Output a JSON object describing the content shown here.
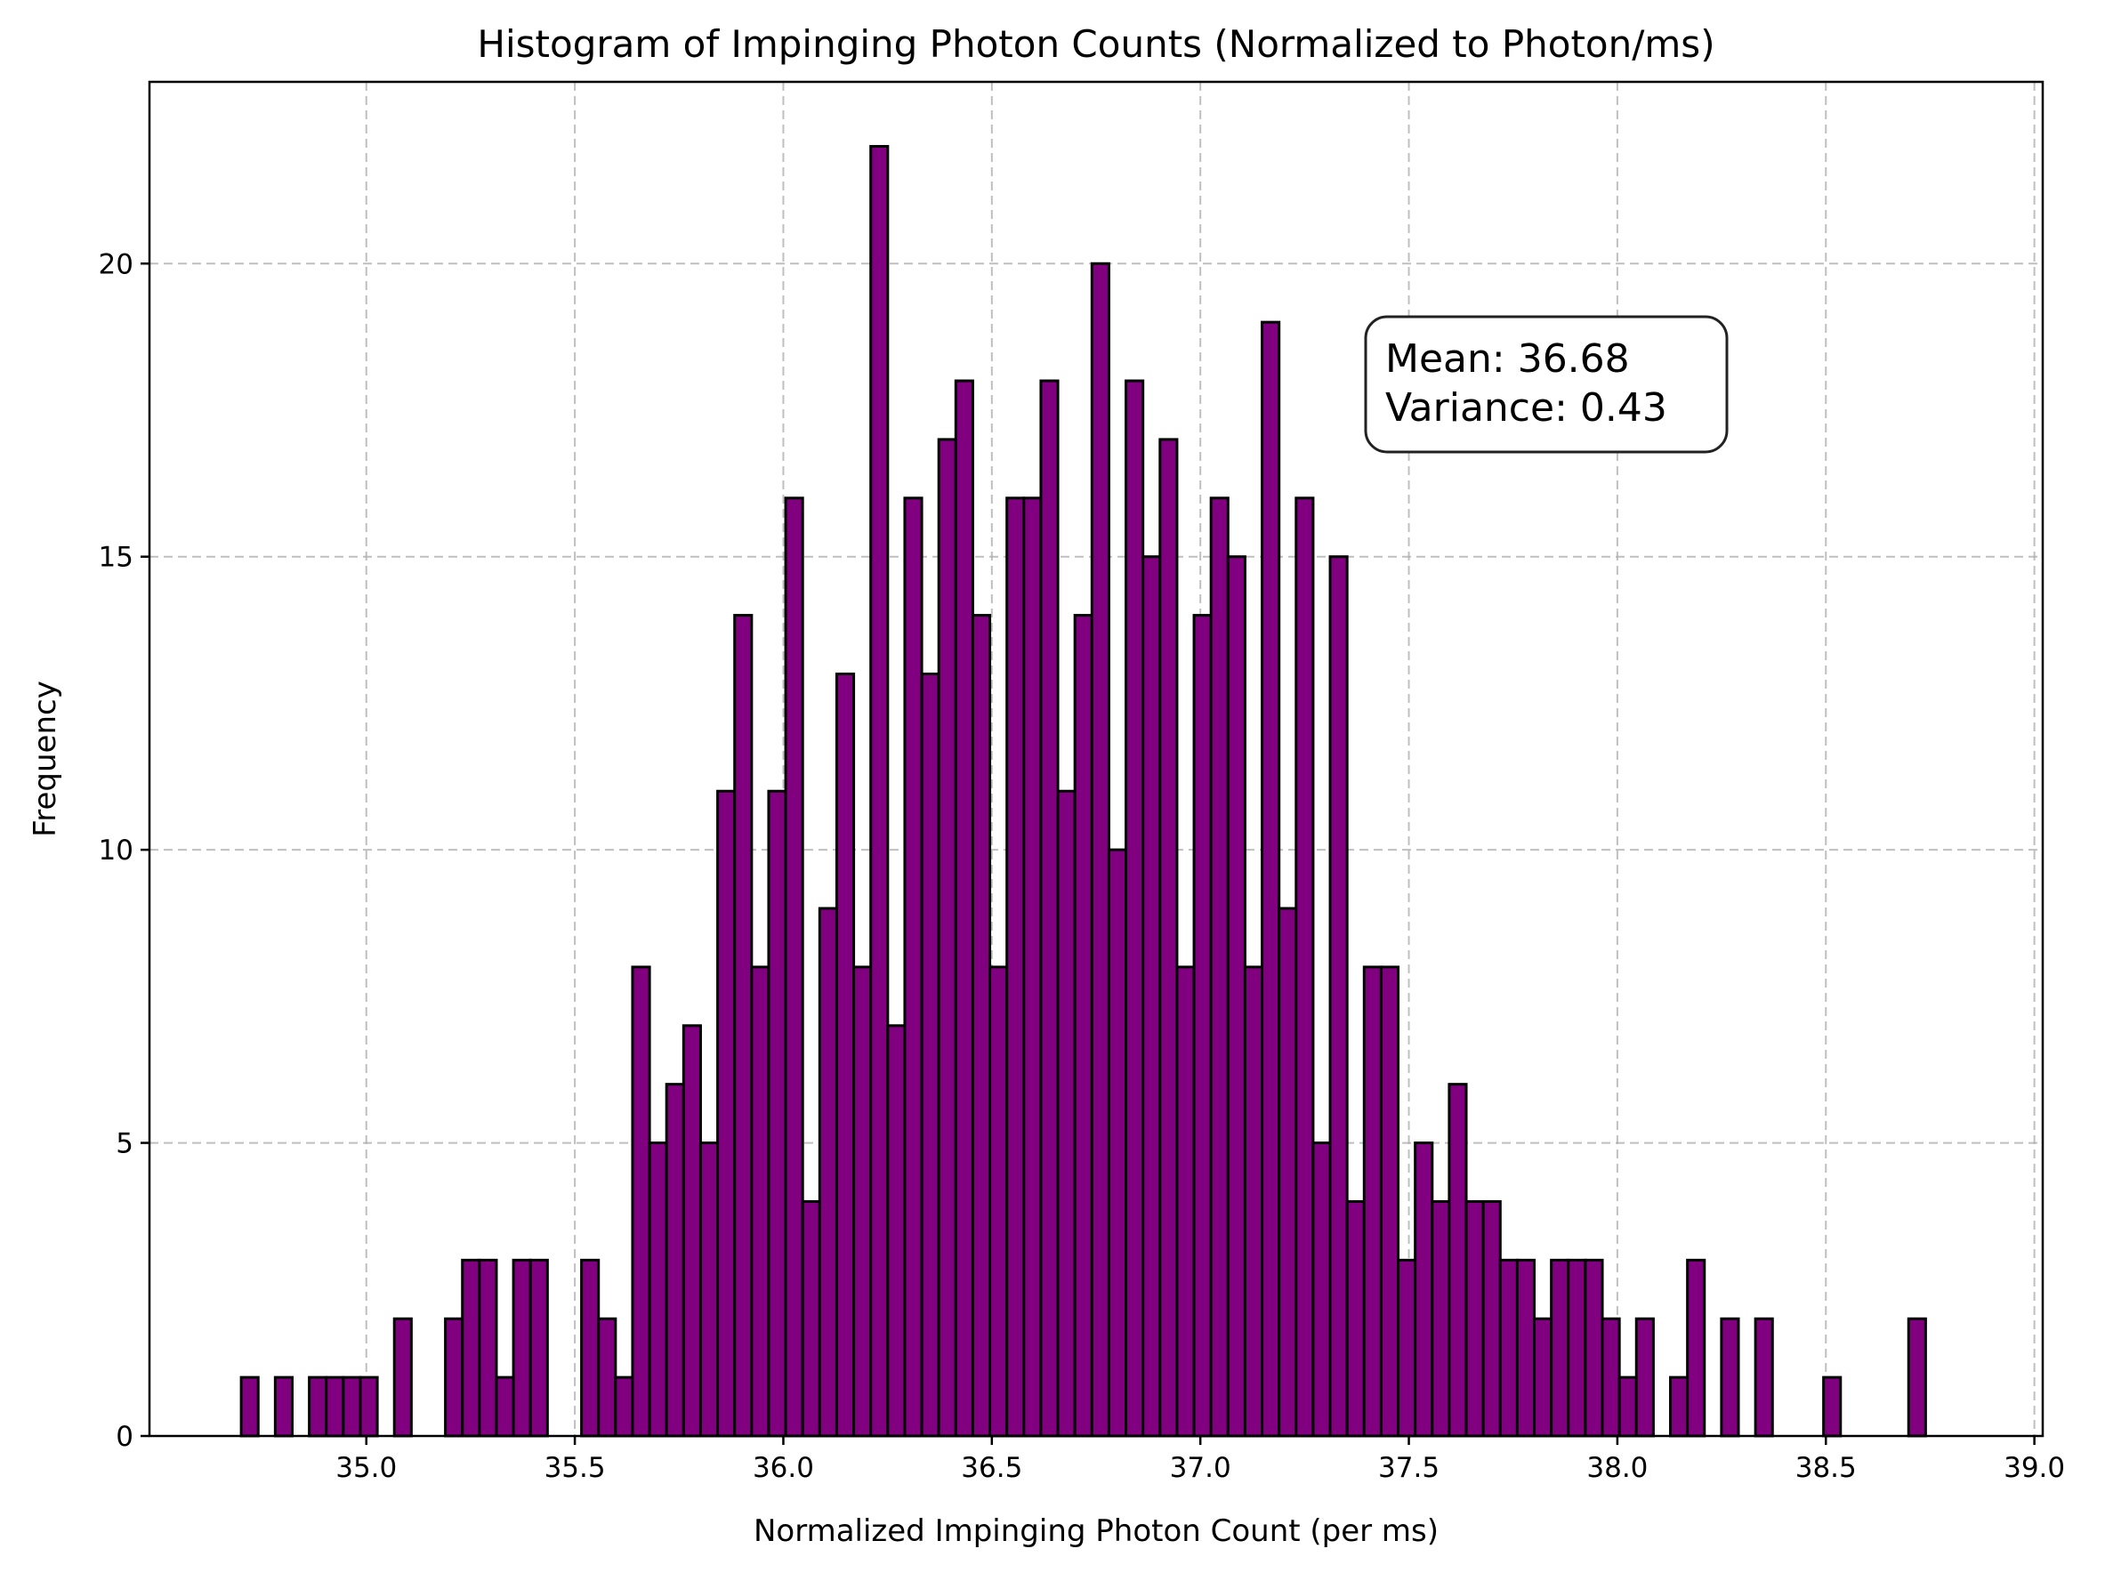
{
  "chart_data": {
    "type": "bar",
    "title": "Histogram of Impinging Photon Counts (Normalized to Photon/ms)",
    "xlabel": "Normalized Impinging Photon Count (per ms)",
    "ylabel": "Frequency",
    "xlim": [
      34.48,
      39.02
    ],
    "ylim": [
      0,
      23.1
    ],
    "xticks": [
      "35.0",
      "35.5",
      "36.0",
      "36.5",
      "37.0",
      "37.5",
      "38.0",
      "38.5",
      "39.0"
    ],
    "xtick_values": [
      35.0,
      35.5,
      36.0,
      36.5,
      37.0,
      37.5,
      38.0,
      38.5,
      39.0
    ],
    "yticks": [
      "0",
      "5",
      "10",
      "15",
      "20"
    ],
    "ytick_values": [
      0,
      5,
      10,
      15,
      20
    ],
    "grid": true,
    "bar_color": "#800080",
    "edge_color": "#000000",
    "bin_start": 34.7,
    "bin_width": 0.0408,
    "values": [
      1,
      0,
      1,
      0,
      1,
      1,
      1,
      1,
      0,
      2,
      0,
      0,
      2,
      3,
      3,
      1,
      3,
      3,
      0,
      0,
      3,
      2,
      1,
      8,
      5,
      6,
      7,
      5,
      11,
      14,
      8,
      11,
      16,
      4,
      9,
      13,
      8,
      22,
      7,
      16,
      13,
      17,
      18,
      14,
      8,
      16,
      16,
      18,
      11,
      14,
      20,
      10,
      18,
      15,
      17,
      8,
      14,
      16,
      15,
      8,
      19,
      9,
      16,
      5,
      15,
      4,
      8,
      8,
      3,
      5,
      4,
      6,
      4,
      4,
      3,
      3,
      2,
      3,
      3,
      3,
      2,
      1,
      2,
      0,
      1,
      3,
      0,
      2,
      0,
      2,
      0,
      0,
      0,
      1,
      0,
      0,
      0,
      0,
      2
    ],
    "annotation": {
      "line1": "Mean: 36.68",
      "line2": "Variance: 0.43"
    }
  }
}
